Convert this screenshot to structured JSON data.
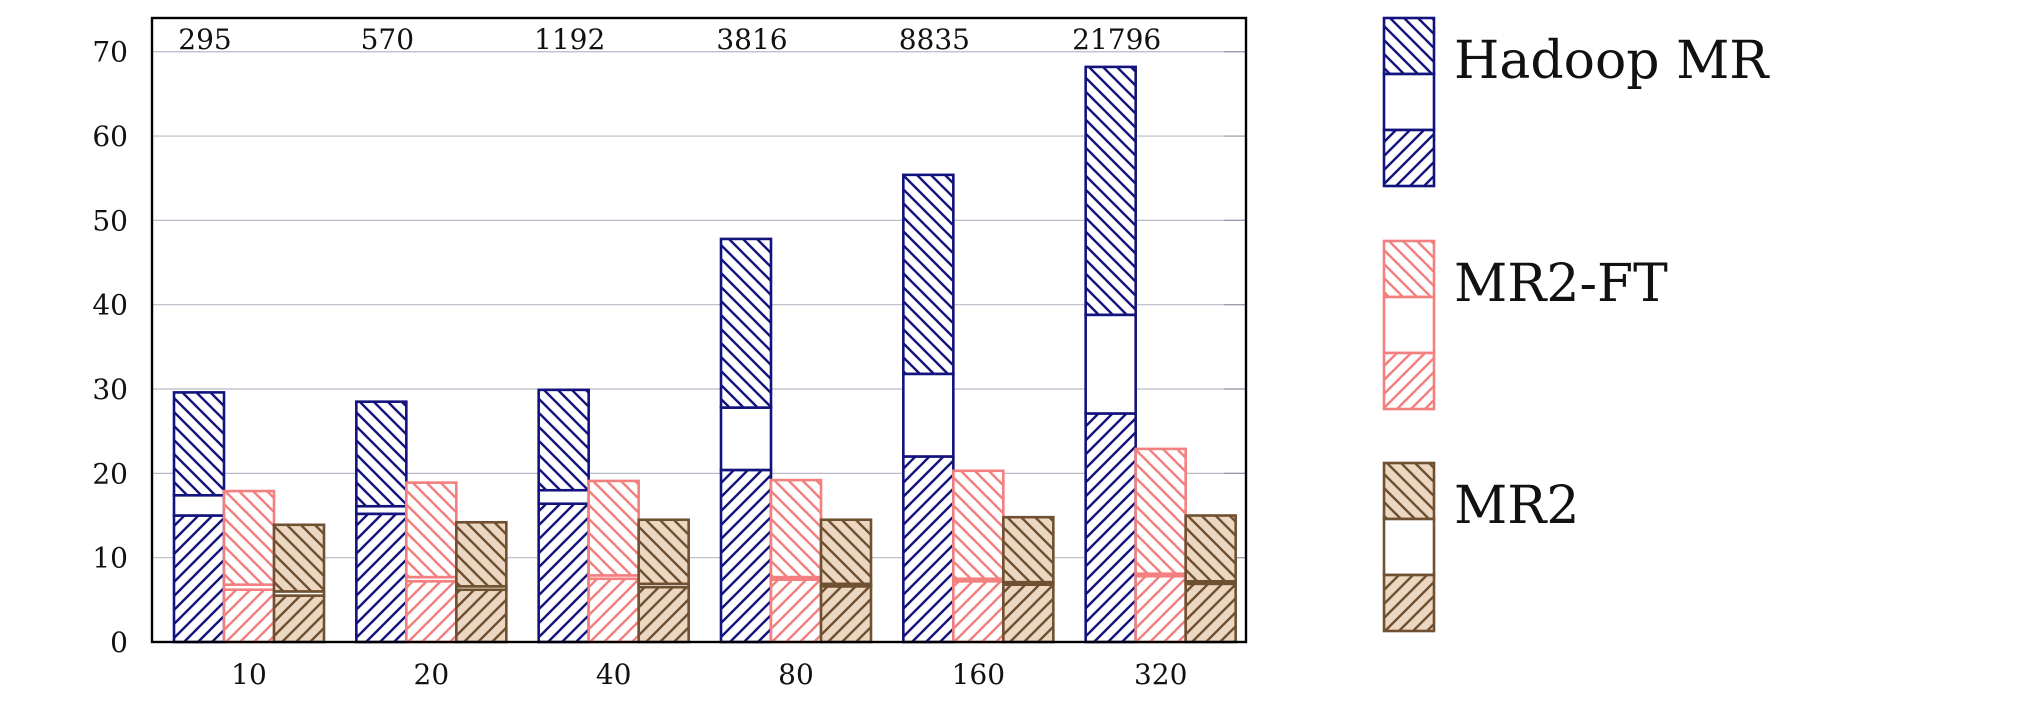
{
  "chart_data": {
    "type": "bar",
    "stacked": true,
    "categories": [
      "10",
      "20",
      "40",
      "80",
      "160",
      "320"
    ],
    "top_labels": [
      "295",
      "570",
      "1192",
      "3816",
      "8835",
      "21796"
    ],
    "series": [
      {
        "name": "Hadoop MR",
        "color": "#13137d",
        "segments": [
          {
            "values": [
              15.0,
              15.2,
              16.4,
              20.4,
              22.0,
              27.1
            ]
          },
          {
            "values": [
              2.4,
              0.9,
              1.6,
              7.4,
              9.8,
              11.7
            ]
          },
          {
            "values": [
              12.2,
              12.4,
              11.9,
              20.0,
              23.6,
              29.4
            ]
          }
        ]
      },
      {
        "name": "MR2-FT",
        "color": "#f37f7f",
        "segments": [
          {
            "values": [
              6.2,
              7.2,
              7.5,
              7.4,
              7.2,
              7.8
            ]
          },
          {
            "values": [
              0.6,
              0.5,
              0.4,
              0.3,
              0.3,
              0.3
            ]
          },
          {
            "values": [
              11.1,
              11.2,
              11.2,
              11.5,
              12.8,
              14.8
            ]
          }
        ]
      },
      {
        "name": "MR2",
        "color": "#6f5030",
        "fill": "#ecd7c2",
        "segments": [
          {
            "values": [
              5.5,
              6.2,
              6.5,
              6.6,
              6.8,
              6.9
            ]
          },
          {
            "values": [
              0.5,
              0.4,
              0.4,
              0.3,
              0.3,
              0.3
            ]
          },
          {
            "values": [
              7.9,
              7.6,
              7.6,
              7.6,
              7.7,
              7.8
            ]
          }
        ]
      }
    ],
    "ylim": [
      0,
      74
    ],
    "yticks": [
      0,
      10,
      20,
      30,
      40,
      50,
      60,
      70
    ],
    "grid": "y-ticks",
    "legend_position": "right",
    "title": "",
    "xlabel": "",
    "ylabel": ""
  }
}
